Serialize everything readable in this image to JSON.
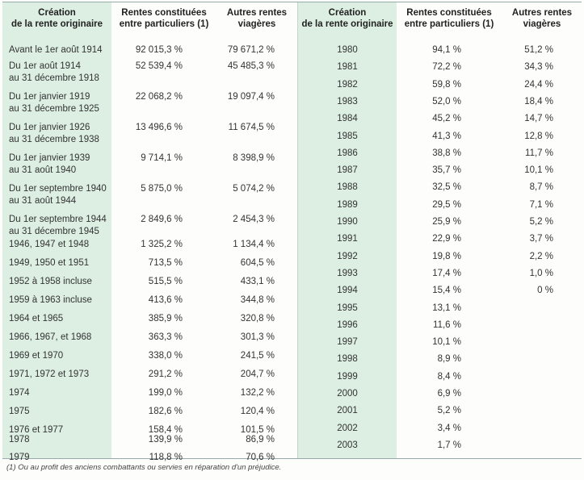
{
  "headers": {
    "left": [
      "Création\nde la rente originaire",
      "Rentes constituées\nentre particuliers (1)",
      "Autres rentes\nviagères"
    ],
    "right": [
      "Création\nde la rente originaire",
      "Rentes constituées\nentre particuliers (1)",
      "Autres rentes\nviagères"
    ]
  },
  "left_rows": [
    {
      "label": "Avant le 1er août 1914",
      "a": "92 015,3 %",
      "b": "79 671,2 %"
    },
    {
      "label": "Du 1er août 1914\nau 31 décembre 1918",
      "a": "52 539,4 %",
      "b": "45 485,3 %"
    },
    {
      "label": "Du 1er janvier 1919\nau 31 décembre 1925",
      "a": "22 068,2 %",
      "b": "19 097,4 %"
    },
    {
      "label": "Du 1er janvier 1926\nau 31 décembre 1938",
      "a": "13 496,6 %",
      "b": "11 674,5 %"
    },
    {
      "label": "Du 1er janvier 1939\nau 31 août 1940",
      "a": "9 714,1 %",
      "b": "8 398,9 %"
    },
    {
      "label": "Du 1er septembre 1940\nau 31 août 1944",
      "a": "5 875,0 %",
      "b": "5 074,2 %"
    },
    {
      "label": "Du 1er septembre 1944\nau 31 décembre 1945",
      "a": "2 849,6 %",
      "b": "2 454,3 %"
    },
    {
      "label": "1946, 1947 et 1948",
      "a": "1 325,2 %",
      "b": "1 134,4 %"
    },
    {
      "label": "1949, 1950 et 1951",
      "a": "713,5 %",
      "b": "604,5 %"
    },
    {
      "label": "1952 à 1958 incluse",
      "a": "515,5 %",
      "b": "433,1 %"
    },
    {
      "label": "1959 à 1963 incluse",
      "a": "413,6 %",
      "b": "344,8 %"
    },
    {
      "label": "1964 et 1965",
      "a": "385,9 %",
      "b": "320,8 %"
    },
    {
      "label": "1966, 1967, et 1968",
      "a": "363,3 %",
      "b": "301,3 %"
    },
    {
      "label": "1969 et 1970",
      "a": "338,0 %",
      "b": "241,5 %"
    },
    {
      "label": "1971, 1972 et 1973",
      "a": "291,2 %",
      "b": "204,7 %"
    },
    {
      "label": "1974",
      "a": "199,0 %",
      "b": "132,2 %"
    },
    {
      "label": "1975",
      "a": "182,6 %",
      "b": "120,4 %"
    },
    {
      "label": "1976 et 1977",
      "a": "158,4 %",
      "b": "101,5 %"
    },
    {
      "label": "1978",
      "a": "139,9 %",
      "b": "86,9 %"
    },
    {
      "label": "1979",
      "a": "118,8 %",
      "b": "70,6 %"
    }
  ],
  "right_rows": [
    {
      "label": "1980",
      "a": "94,1 %",
      "b": "51,2 %"
    },
    {
      "label": "1981",
      "a": "72,2 %",
      "b": "34,3 %"
    },
    {
      "label": "1982",
      "a": "59,8 %",
      "b": "24,4 %"
    },
    {
      "label": "1983",
      "a": "52,0 %",
      "b": "18,4 %"
    },
    {
      "label": "1984",
      "a": "45,2 %",
      "b": "14,7 %"
    },
    {
      "label": "1985",
      "a": "41,3 %",
      "b": "12,8 %"
    },
    {
      "label": "1986",
      "a": "38,8 %",
      "b": "11,7 %"
    },
    {
      "label": "1987",
      "a": "35,7 %",
      "b": "10,1 %"
    },
    {
      "label": "1988",
      "a": "32,5 %",
      "b": "8,7 %"
    },
    {
      "label": "1989",
      "a": "29,5 %",
      "b": "7,1 %"
    },
    {
      "label": "1990",
      "a": "25,9 %",
      "b": "5,2 %"
    },
    {
      "label": "1991",
      "a": "22,9 %",
      "b": "3,7 %"
    },
    {
      "label": "1992",
      "a": "19,8 %",
      "b": "2,2 %"
    },
    {
      "label": "1993",
      "a": "17,4 %",
      "b": "1,0 %"
    },
    {
      "label": "1994",
      "a": "15,4 %",
      "b": "0 %"
    },
    {
      "label": "1995",
      "a": "13,1 %",
      "b": ""
    },
    {
      "label": "1996",
      "a": "11,6 %",
      "b": ""
    },
    {
      "label": "1997",
      "a": "10,1 %",
      "b": ""
    },
    {
      "label": "1998",
      "a": "8,9 %",
      "b": ""
    },
    {
      "label": "1999",
      "a": "8,4 %",
      "b": ""
    },
    {
      "label": "2000",
      "a": "6,9 %",
      "b": ""
    },
    {
      "label": "2001",
      "a": "5,2 %",
      "b": ""
    },
    {
      "label": "2002",
      "a": "3,4 %",
      "b": ""
    },
    {
      "label": "2003",
      "a": "1,7 %",
      "b": ""
    }
  ],
  "footnote": "(1) Ou au profit des anciens combattants ou servies en réparation d'un préjudice."
}
